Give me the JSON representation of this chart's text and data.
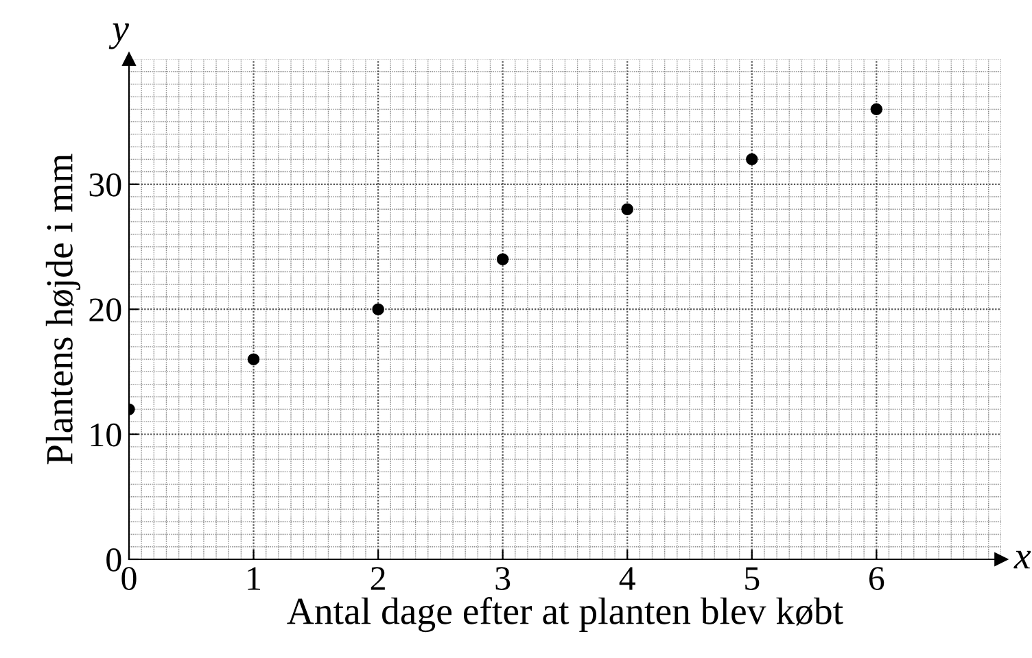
{
  "chart_data": {
    "type": "scatter",
    "xlabel": "Antal dage efter at planten blev købt",
    "ylabel": "Plantens højde i mm",
    "annotations": [
      "y",
      "x"
    ],
    "x": [
      0,
      1,
      2,
      3,
      4,
      5,
      6
    ],
    "values": [
      12,
      16,
      20,
      24,
      28,
      32,
      36
    ],
    "color": "#000000",
    "marker": "circle",
    "xlim": [
      0,
      7
    ],
    "ylim": [
      0,
      40
    ],
    "xticks": [
      0,
      1,
      2,
      3,
      4,
      5,
      6
    ],
    "yticks": [
      0,
      10,
      20,
      30
    ],
    "grid": true
  }
}
